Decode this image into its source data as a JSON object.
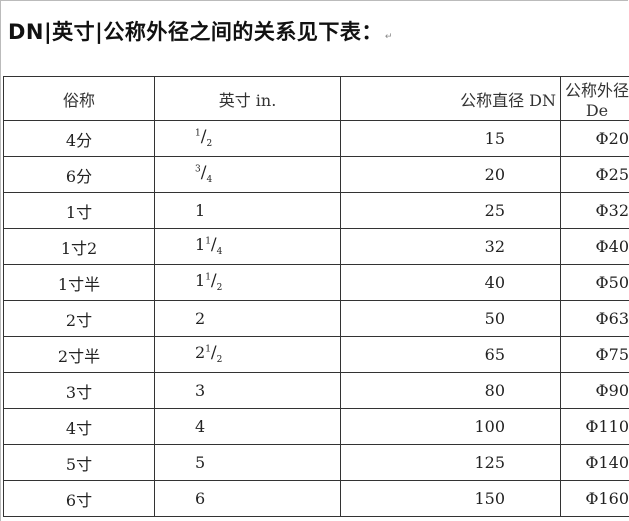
{
  "title": "DN|英寸|公称外径之间的关系见下表：",
  "table": {
    "headers": [
      "俗称",
      "英寸 in.",
      "公称直径 DN",
      "公称外径 De"
    ],
    "rows": [
      {
        "name": "4分",
        "inch_whole": "",
        "inch_num": "1",
        "inch_den": "2",
        "dn": "15",
        "de": "Φ20"
      },
      {
        "name": "6分",
        "inch_whole": "",
        "inch_num": "3",
        "inch_den": "4",
        "dn": "20",
        "de": "Φ25"
      },
      {
        "name": "1寸",
        "inch_whole": "1",
        "inch_num": "",
        "inch_den": "",
        "dn": "25",
        "de": "Φ32"
      },
      {
        "name": "1寸2",
        "inch_whole": "1",
        "inch_num": "1",
        "inch_den": "4",
        "dn": "32",
        "de": "Φ40"
      },
      {
        "name": "1寸半",
        "inch_whole": "1",
        "inch_num": "1",
        "inch_den": "2",
        "dn": "40",
        "de": "Φ50"
      },
      {
        "name": "2寸",
        "inch_whole": "2",
        "inch_num": "",
        "inch_den": "",
        "dn": "50",
        "de": "Φ63"
      },
      {
        "name": "2寸半",
        "inch_whole": "2",
        "inch_num": "1",
        "inch_den": "2",
        "dn": "65",
        "de": "Φ75"
      },
      {
        "name": "3寸",
        "inch_whole": "3",
        "inch_num": "",
        "inch_den": "",
        "dn": "80",
        "de": "Φ90"
      },
      {
        "name": "4寸",
        "inch_whole": "4",
        "inch_num": "",
        "inch_den": "",
        "dn": "100",
        "de": "Φ110"
      },
      {
        "name": "5寸",
        "inch_whole": "5",
        "inch_num": "",
        "inch_den": "",
        "dn": "125",
        "de": "Φ140"
      },
      {
        "name": "6寸",
        "inch_whole": "6",
        "inch_num": "",
        "inch_den": "",
        "dn": "150",
        "de": "Φ160"
      }
    ]
  }
}
